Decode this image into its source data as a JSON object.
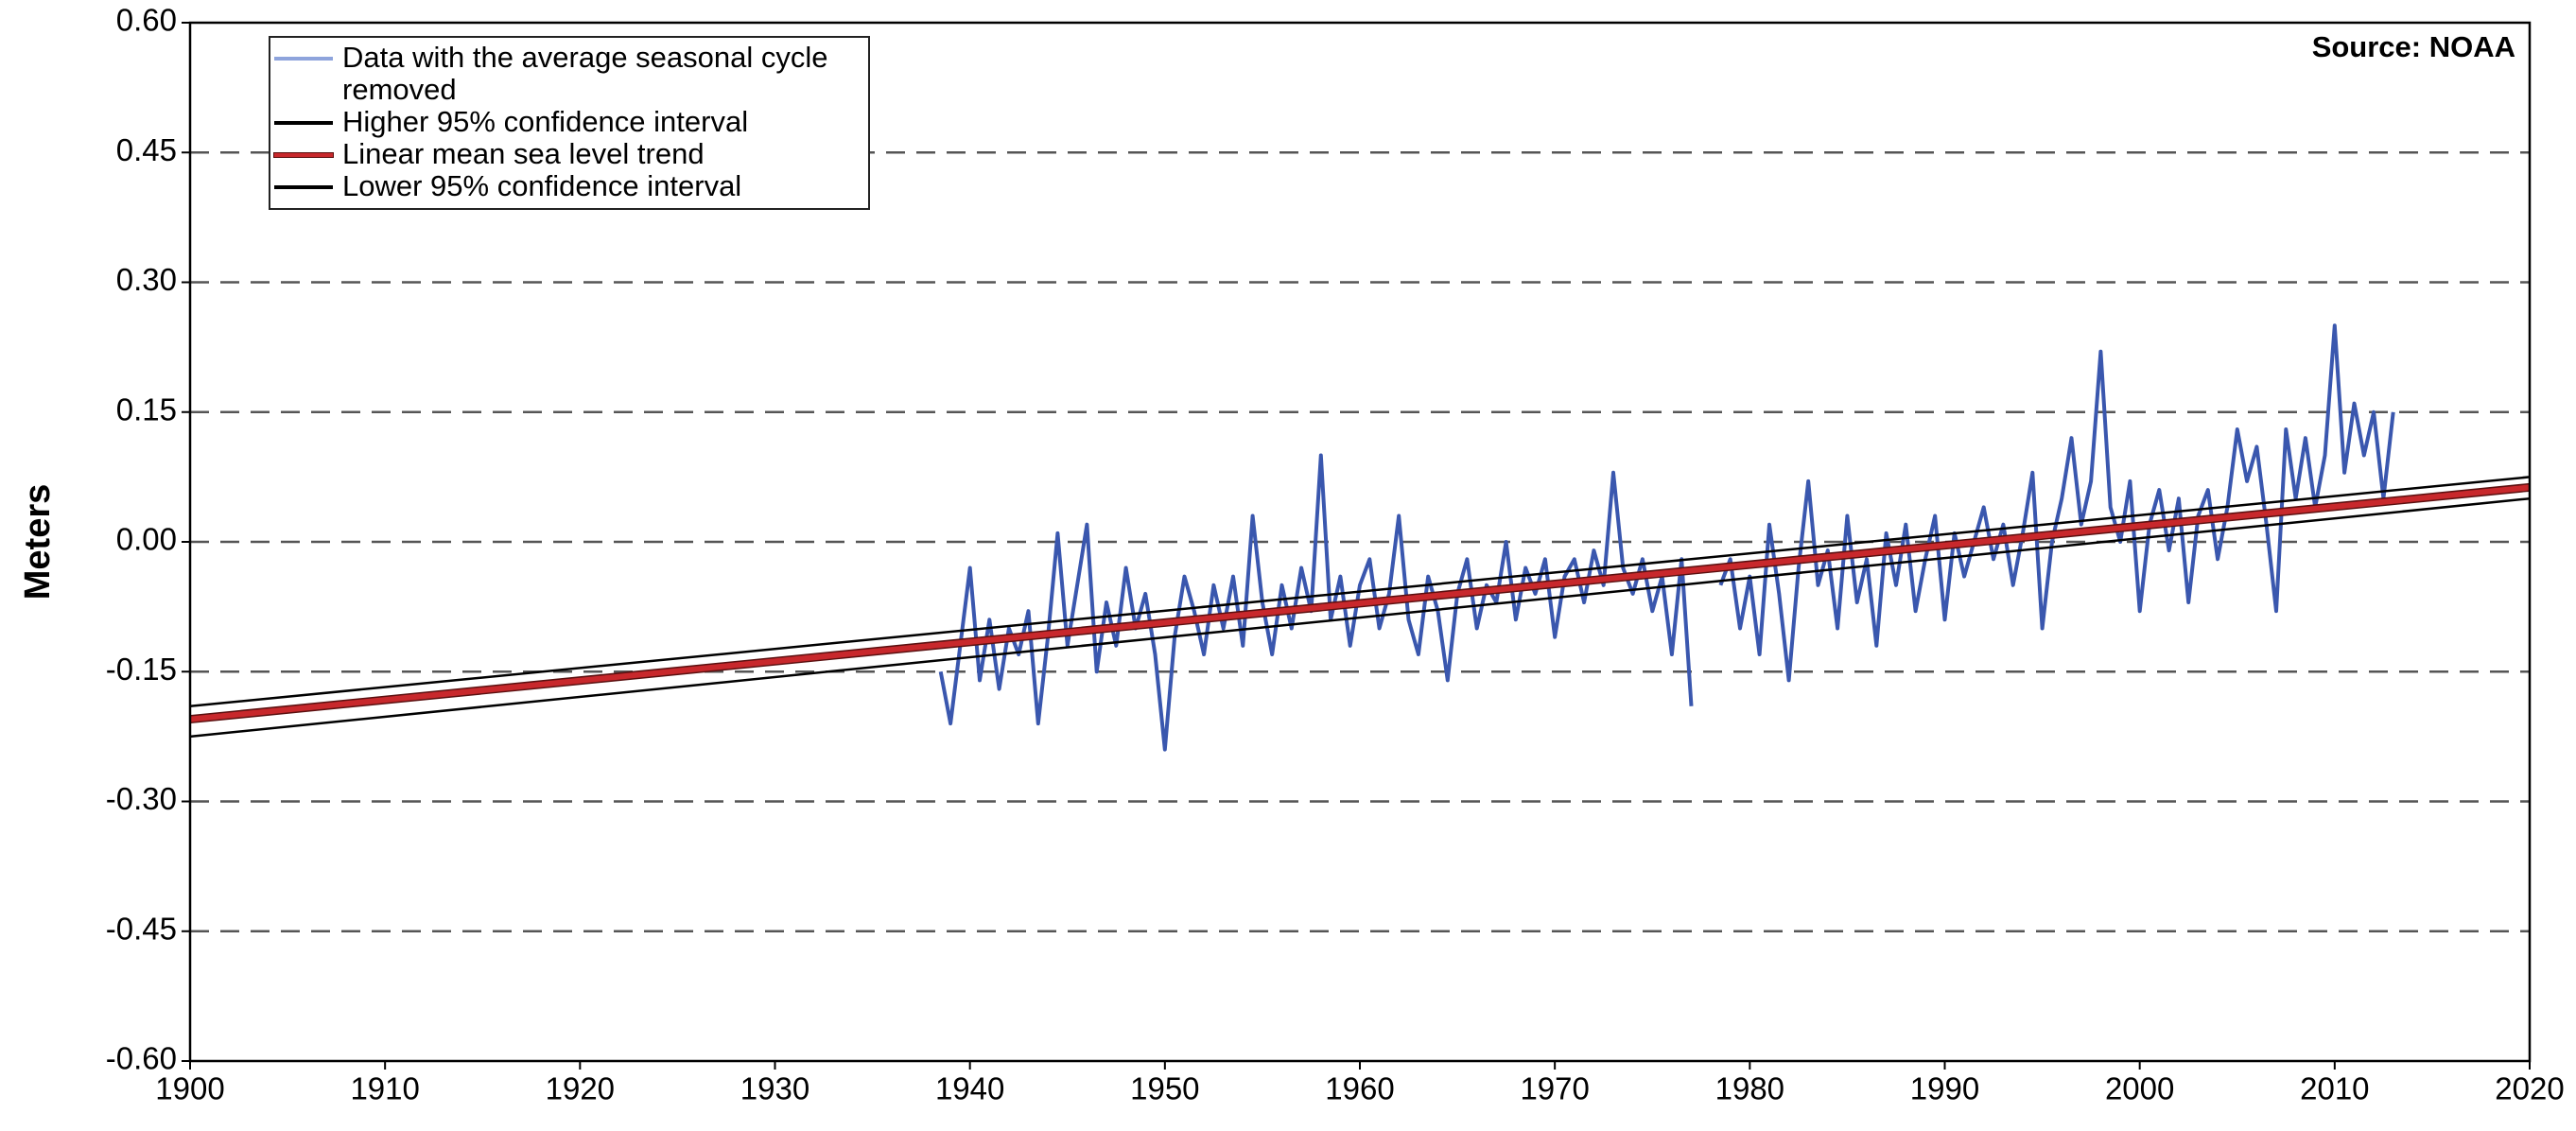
{
  "chart_data": {
    "type": "line",
    "y_label": "Meters",
    "annotation": "Source: NOAA",
    "legend": "upper left",
    "grid": true,
    "xlim": [
      1900,
      2020
    ],
    "xticks": [
      1900,
      1910,
      1920,
      1930,
      1940,
      1950,
      1960,
      1970,
      1980,
      1990,
      2000,
      2010,
      2020
    ],
    "ylim": [
      -0.6,
      0.6
    ],
    "yticks": [
      {
        "value": -0.6,
        "label": "-0.60"
      },
      {
        "value": -0.45,
        "label": "-0.45"
      },
      {
        "value": -0.3,
        "label": "-0.30"
      },
      {
        "value": -0.15,
        "label": "-0.15"
      },
      {
        "value": 0,
        "label": "0.00"
      },
      {
        "value": 0.15,
        "label": "0.15"
      },
      {
        "value": 0.3,
        "label": "0.30"
      },
      {
        "value": 0.45,
        "label": "0.45"
      },
      {
        "value": 0.6,
        "label": "0.60"
      }
    ],
    "series": [
      {
        "name": "Data with the average seasonal cycle removed",
        "color": "#3a57ae",
        "legend_color": "#8ea4dc",
        "x": [
          1938.5,
          1939,
          1939.5,
          1940,
          1940.5,
          1941,
          1941.5,
          1942,
          1942.5,
          1943,
          1943.5,
          1944,
          1944.5,
          1945,
          1945.5,
          1946,
          1946.5,
          1947,
          1947.5,
          1948,
          1948.5,
          1949,
          1949.5,
          1950,
          1950.5,
          1951,
          1951.5,
          1952,
          1952.5,
          1953,
          1953.5,
          1954,
          1954.5,
          1955,
          1955.5,
          1956,
          1956.5,
          1957,
          1957.5,
          1958,
          1958.5,
          1959,
          1959.5,
          1960,
          1960.5,
          1961,
          1961.5,
          1962,
          1962.5,
          1963,
          1963.5,
          1964,
          1964.5,
          1965,
          1965.5,
          1966,
          1966.5,
          1967,
          1967.5,
          1968,
          1968.5,
          1969,
          1969.5,
          1970,
          1970.5,
          1971,
          1971.5,
          1972,
          1972.5,
          1973,
          1973.5,
          1974,
          1974.5,
          1975,
          1975.5,
          1976,
          1976.5,
          1977,
          1977.5,
          1978,
          1978.5,
          1979,
          1979.5,
          1980,
          1980.5,
          1981,
          1981.5,
          1982,
          1982.5,
          1983,
          1983.5,
          1984,
          1984.5,
          1985,
          1985.5,
          1986,
          1986.5,
          1987,
          1987.5,
          1988,
          1988.5,
          1989,
          1989.5,
          1990,
          1990.5,
          1991,
          1991.5,
          1992,
          1992.5,
          1993,
          1993.5,
          1994,
          1994.5,
          1995,
          1995.5,
          1996,
          1996.5,
          1997,
          1997.5,
          1998,
          1998.5,
          1999,
          1999.5,
          2000,
          2000.5,
          2001,
          2001.5,
          2002,
          2002.5,
          2003,
          2003.5,
          2004,
          2004.5,
          2005,
          2005.5,
          2006,
          2006.5,
          2007,
          2007.5,
          2008,
          2008.5,
          2009,
          2009.5,
          2010,
          2010.5,
          2011,
          2011.5,
          2012,
          2012.5,
          2013
        ],
        "values": [
          -0.15,
          -0.21,
          -0.12,
          -0.03,
          -0.16,
          -0.09,
          -0.17,
          -0.1,
          -0.13,
          -0.08,
          -0.21,
          -0.11,
          0.01,
          -0.12,
          -0.05,
          0.02,
          -0.15,
          -0.07,
          -0.12,
          -0.03,
          -0.1,
          -0.06,
          -0.13,
          -0.24,
          -0.11,
          -0.04,
          -0.08,
          -0.13,
          -0.05,
          -0.1,
          -0.04,
          -0.12,
          0.03,
          -0.07,
          -0.13,
          -0.05,
          -0.1,
          -0.03,
          -0.08,
          0.1,
          -0.09,
          -0.04,
          -0.12,
          -0.05,
          -0.02,
          -0.1,
          -0.06,
          0.03,
          -0.09,
          -0.13,
          -0.04,
          -0.08,
          -0.16,
          -0.06,
          -0.02,
          -0.1,
          -0.05,
          -0.07,
          0,
          -0.09,
          -0.03,
          -0.06,
          -0.02,
          -0.11,
          -0.04,
          -0.02,
          -0.07,
          -0.01,
          -0.05,
          0.08,
          -0.03,
          -0.06,
          -0.02,
          -0.08,
          -0.04,
          -0.13,
          -0.02,
          -0.19,
          null,
          null,
          -0.05,
          -0.02,
          -0.1,
          -0.04,
          -0.13,
          0.02,
          -0.06,
          -0.16,
          -0.03,
          0.07,
          -0.05,
          -0.01,
          -0.1,
          0.03,
          -0.07,
          -0.02,
          -0.12,
          0.01,
          -0.05,
          0.02,
          -0.08,
          -0.02,
          0.03,
          -0.09,
          0.01,
          -0.04,
          0,
          0.04,
          -0.02,
          0.02,
          -0.05,
          0.01,
          0.08,
          -0.1,
          0,
          0.05,
          0.12,
          0.02,
          0.07,
          0.22,
          0.04,
          0,
          0.07,
          -0.08,
          0.02,
          0.06,
          -0.01,
          0.05,
          -0.07,
          0.03,
          0.06,
          -0.02,
          0.04,
          0.13,
          0.07,
          0.11,
          0.02,
          -0.08,
          0.13,
          0.05,
          0.12,
          0.04,
          0.1,
          0.25,
          0.08,
          0.16,
          0.1,
          0.15,
          0.05,
          0.15
        ]
      },
      {
        "name": "Higher 95% confidence interval",
        "color": "#000000",
        "x": [
          1900,
          2020
        ],
        "values": [
          -0.19,
          0.075
        ]
      },
      {
        "name": "Linear mean sea level trend",
        "color": "#c8282c",
        "x": [
          1900,
          2020
        ],
        "values": [
          -0.205,
          0.063
        ]
      },
      {
        "name": "Lower 95% confidence interval",
        "color": "#000000",
        "x": [
          1900,
          2020
        ],
        "values": [
          -0.225,
          0.05
        ]
      }
    ]
  }
}
